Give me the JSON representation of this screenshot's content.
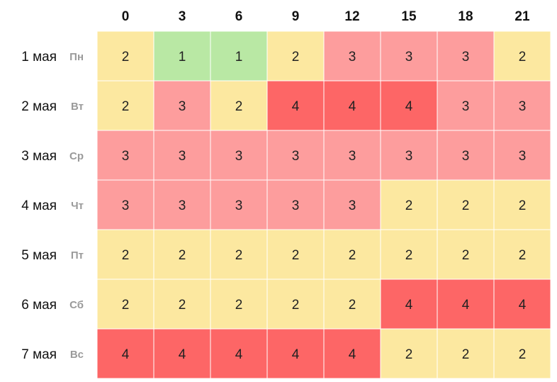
{
  "chart_data": {
    "type": "heatmap",
    "x": [
      "0",
      "3",
      "6",
      "9",
      "12",
      "15",
      "18",
      "21"
    ],
    "rows": [
      {
        "date": "1 мая",
        "day": "Пн",
        "values": [
          2,
          1,
          1,
          2,
          3,
          3,
          3,
          2
        ]
      },
      {
        "date": "2 мая",
        "day": "Вт",
        "values": [
          2,
          3,
          2,
          4,
          4,
          4,
          3,
          3
        ]
      },
      {
        "date": "3 мая",
        "day": "Ср",
        "values": [
          3,
          3,
          3,
          3,
          3,
          3,
          3,
          3
        ]
      },
      {
        "date": "4 мая",
        "day": "Чт",
        "values": [
          3,
          3,
          3,
          3,
          3,
          2,
          2,
          2
        ]
      },
      {
        "date": "5 мая",
        "day": "Пт",
        "values": [
          2,
          2,
          2,
          2,
          2,
          2,
          2,
          2
        ]
      },
      {
        "date": "6 мая",
        "day": "Сб",
        "values": [
          2,
          2,
          2,
          2,
          2,
          4,
          4,
          4
        ]
      },
      {
        "date": "7 мая",
        "day": "Вс",
        "values": [
          4,
          4,
          4,
          4,
          4,
          2,
          2,
          2
        ]
      }
    ],
    "color_scale": {
      "1": "#b9e8a4",
      "2": "#fce8a0",
      "3": "#fd9d9d",
      "4": "#fd6666"
    }
  }
}
